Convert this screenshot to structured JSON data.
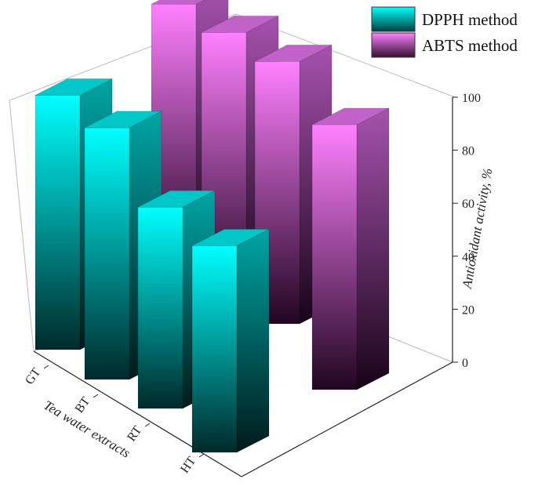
{
  "chart_data": {
    "type": "bar",
    "categories": [
      "GT",
      "BT",
      "RT",
      "HT"
    ],
    "series": [
      {
        "name": "DPPH method",
        "values": [
          96,
          95,
          76,
          78
        ]
      },
      {
        "name": "ABTS method",
        "values": [
          99,
          99,
          99,
          100
        ]
      }
    ],
    "xlabel": "Tea water extracts",
    "zlabel": "Antioxidant activity, %",
    "zlim": [
      0,
      100
    ],
    "zticks": [
      0,
      20,
      40,
      60,
      80,
      100
    ],
    "legend_position": "top-right",
    "colors": {
      "dpph_face": "#00ffff",
      "dpph_dark": "#003333",
      "dpph_side": "#00a3a3",
      "abts_face": "#ff80ff",
      "abts_dark": "#2a0a2a",
      "abts_side": "#a050a8",
      "abts_top": "#c060c8"
    }
  }
}
